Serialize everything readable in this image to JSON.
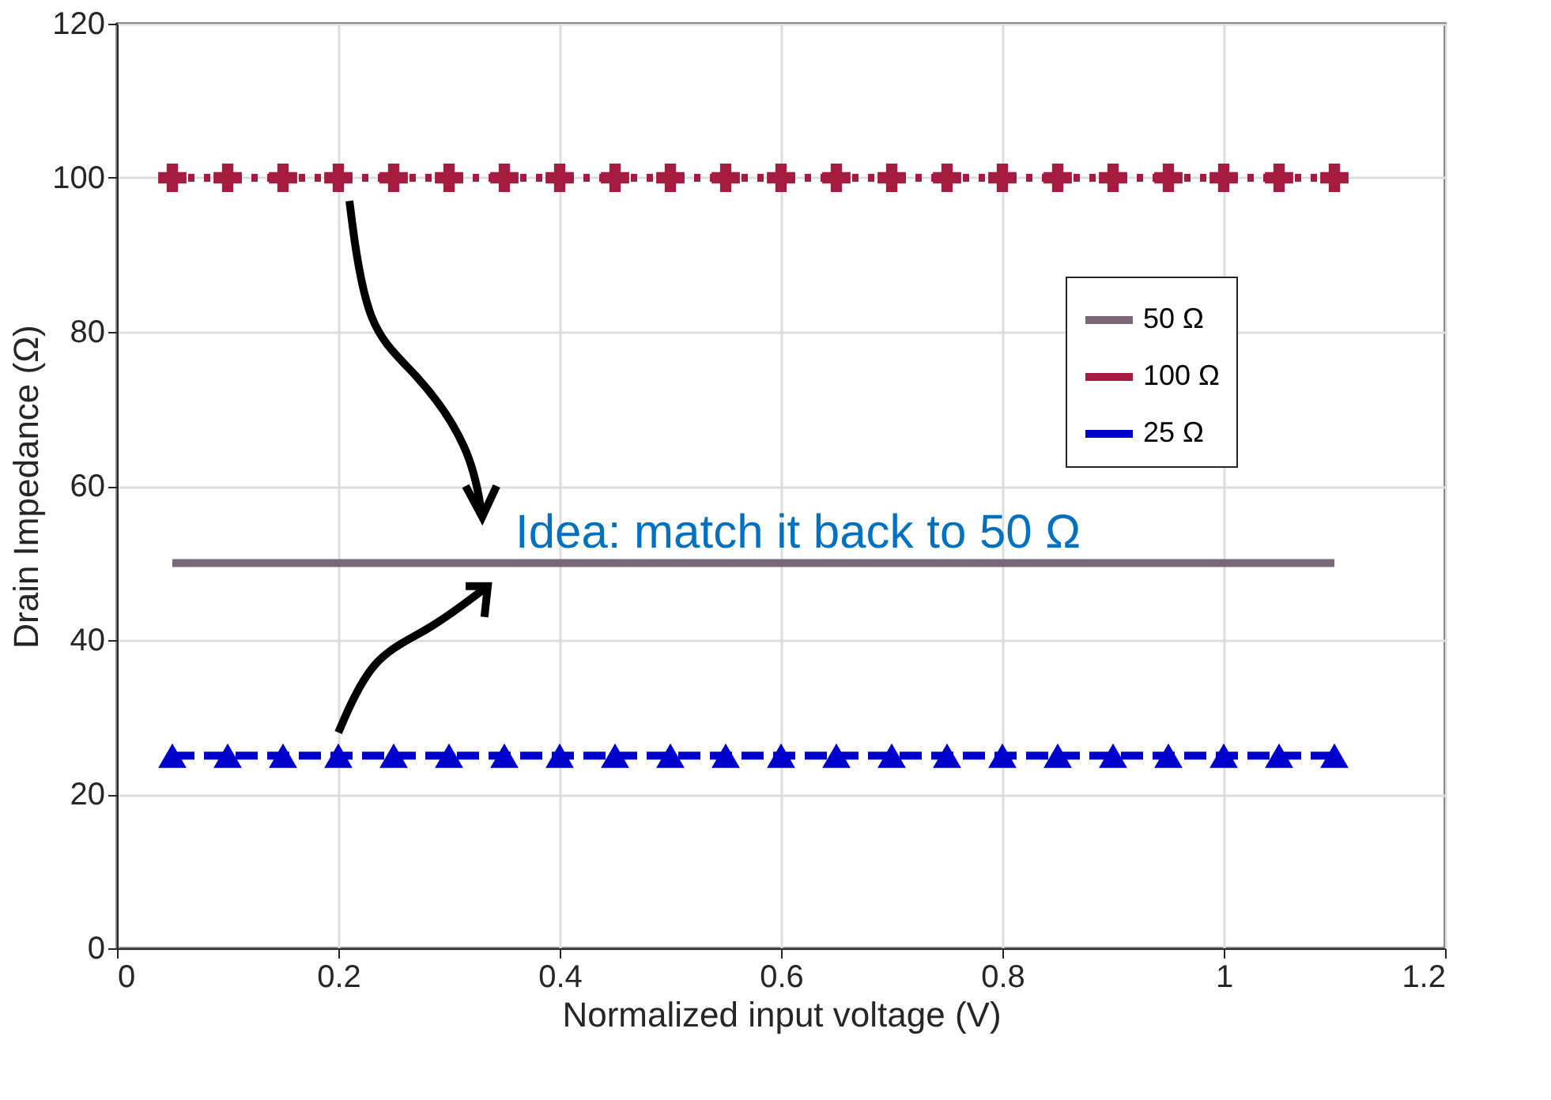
{
  "chart_data": {
    "type": "line",
    "xlabel": "Normalized input voltage (V)",
    "ylabel": "Drain Impedance (Ω)",
    "x": [
      0.05,
      0.1,
      0.15,
      0.2,
      0.25,
      0.3,
      0.35,
      0.4,
      0.45,
      0.5,
      0.55,
      0.6,
      0.65,
      0.7,
      0.75,
      0.8,
      0.85,
      0.9,
      0.95,
      1.0,
      1.05,
      1.1
    ],
    "series": [
      {
        "name": "50 Ω",
        "color": "#7a6878",
        "marker": "none",
        "line_style": "solid",
        "values": [
          50,
          50,
          50,
          50,
          50,
          50,
          50,
          50,
          50,
          50,
          50,
          50,
          50,
          50,
          50,
          50,
          50,
          50,
          50,
          50,
          50,
          50
        ]
      },
      {
        "name": "100 Ω",
        "color": "#a51c40",
        "marker": "cross",
        "line_style": "dotted",
        "values": [
          100,
          100,
          100,
          100,
          100,
          100,
          100,
          100,
          100,
          100,
          100,
          100,
          100,
          100,
          100,
          100,
          100,
          100,
          100,
          100,
          100,
          100
        ]
      },
      {
        "name": "25 Ω",
        "color": "#0000cc",
        "marker": "triangle",
        "line_style": "dashed",
        "values": [
          25,
          25,
          25,
          25,
          25,
          25,
          25,
          25,
          25,
          25,
          25,
          25,
          25,
          25,
          25,
          25,
          25,
          25,
          25,
          25,
          25,
          25
        ]
      }
    ],
    "xlim": [
      0,
      1.2
    ],
    "xticks": [
      0,
      0.2,
      0.4,
      0.6,
      0.8,
      1,
      1.2
    ],
    "ylim": [
      0,
      120
    ],
    "yticks": [
      0,
      20,
      40,
      60,
      80,
      100,
      120
    ],
    "grid": true,
    "legend": "top right",
    "annotations": [
      {
        "text": "Idea: match it back to 50 Ω",
        "x": 0.36,
        "y": 50
      }
    ]
  }
}
